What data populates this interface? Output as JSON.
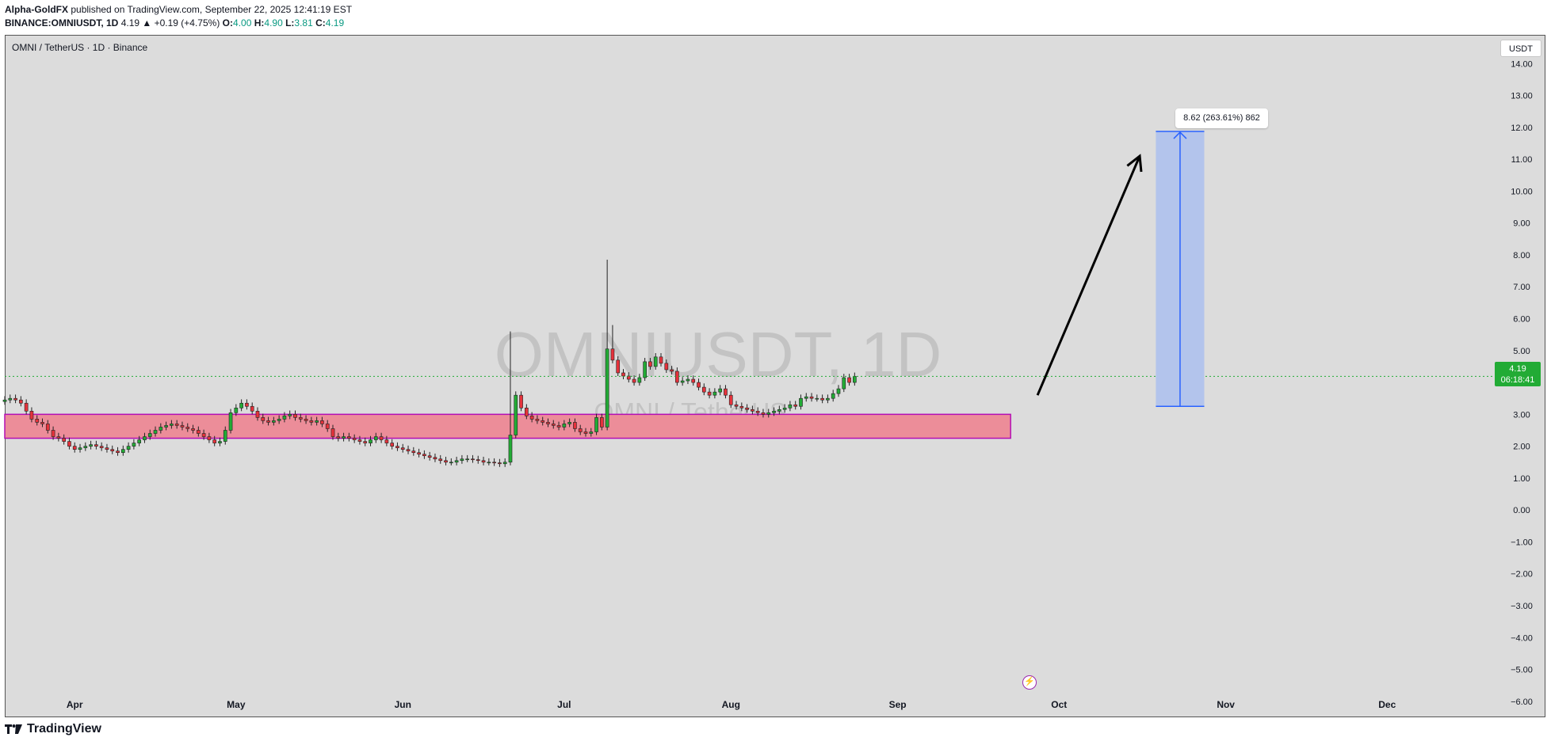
{
  "header": {
    "author": "Alpha-GoldFX",
    "published": "published on TradingView.com, September 22, 2025 12:41:19 EST",
    "symbol": "BINANCE:OMNIUSDT, 1D",
    "last": "4.19",
    "change": "▲ +0.19 (+4.75%)",
    "o_label": "O:",
    "o_val": "4.00",
    "h_label": "H:",
    "h_val": "4.90",
    "l_label": "L:",
    "l_val": "3.81",
    "c_label": "C:",
    "c_val": "4.19"
  },
  "legend": "OMNI / TetherUS · 1D · Binance",
  "currency_button": "USDT",
  "price_tag": {
    "price": "4.19",
    "countdown": "06:18:41"
  },
  "range_label": "8.62 (263.61%) 862",
  "footer": {
    "logo_text": "TradingView"
  },
  "colors": {
    "up": "#22ab35",
    "down": "#e5323b",
    "zone_fill": "#ec8d99",
    "zone_border": "#b40fb4",
    "range_fill": "#b3c4ec",
    "range_line": "#2962ff",
    "background": "#dcdcdc"
  },
  "icons": {
    "flash": "lightning-icon",
    "logo": "tradingview-logo-icon"
  },
  "chart_data": {
    "type": "candlestick",
    "watermark": "OMNIUSDT, 1D",
    "watermark_sub": "OMNI / TetherUS",
    "y_ticks": [
      "14.00",
      "13.00",
      "12.00",
      "11.00",
      "10.00",
      "9.00",
      "8.00",
      "7.00",
      "6.00",
      "5.00",
      "4.00",
      "3.00",
      "2.00",
      "1.00",
      "0.00",
      "−1.00",
      "−2.00",
      "−3.00",
      "−4.00",
      "−5.00",
      "−6.00"
    ],
    "ylim": [
      -6.5,
      14.9
    ],
    "x_ticks": [
      "Apr",
      "May",
      "Jun",
      "Jul",
      "Aug",
      "Sep",
      "Oct",
      "Nov",
      "Dec"
    ],
    "current_price": 4.19,
    "start_date": "2025-03-19",
    "end_date": "2025-12-21",
    "support_zone": {
      "from_date": "2025-03-19",
      "to_date": "2025-09-22",
      "low": 2.25,
      "high": 3.0
    },
    "projection": {
      "from_date": "2025-10-19",
      "to_date": "2025-10-28",
      "low": 3.25,
      "high": 11.87,
      "change": 8.62,
      "percent": 263.61,
      "ticks": 862
    },
    "arrow": {
      "from_date": "2025-09-27",
      "from_price": 3.6,
      "to_date": "2025-10-16",
      "to_price": 11.1
    },
    "closes": [
      3.45,
      3.5,
      3.45,
      3.35,
      3.1,
      2.85,
      2.75,
      2.7,
      2.5,
      2.3,
      2.25,
      2.15,
      2.0,
      1.9,
      1.95,
      2.0,
      2.05,
      2.0,
      1.95,
      1.9,
      1.85,
      1.8,
      1.9,
      2.0,
      2.1,
      2.2,
      2.3,
      2.4,
      2.5,
      2.6,
      2.65,
      2.7,
      2.65,
      2.6,
      2.55,
      2.5,
      2.4,
      2.3,
      2.2,
      2.1,
      2.15,
      2.5,
      3.05,
      3.2,
      3.35,
      3.25,
      3.1,
      2.9,
      2.8,
      2.75,
      2.8,
      2.85,
      2.95,
      3.0,
      2.9,
      2.85,
      2.8,
      2.75,
      2.8,
      2.7,
      2.55,
      2.3,
      2.25,
      2.3,
      2.25,
      2.2,
      2.15,
      2.1,
      2.2,
      2.3,
      2.2,
      2.1,
      2.0,
      1.95,
      1.9,
      1.85,
      1.8,
      1.75,
      1.7,
      1.65,
      1.6,
      1.55,
      1.5,
      1.5,
      1.55,
      1.6,
      1.6,
      1.58,
      1.55,
      1.5,
      1.5,
      1.48,
      1.45,
      1.5,
      2.35,
      3.6,
      3.2,
      2.95,
      2.85,
      2.8,
      2.75,
      2.7,
      2.65,
      2.6,
      2.7,
      2.75,
      2.55,
      2.45,
      2.4,
      2.45,
      2.9,
      2.6,
      5.05,
      4.7,
      4.3,
      4.2,
      4.1,
      4.0,
      4.15,
      4.65,
      4.5,
      4.8,
      4.6,
      4.4,
      4.35,
      4.0,
      4.05,
      4.1,
      4.0,
      3.85,
      3.7,
      3.6,
      3.7,
      3.8,
      3.6,
      3.3,
      3.25,
      3.2,
      3.15,
      3.1,
      3.05,
      3.0,
      3.05,
      3.1,
      3.15,
      3.2,
      3.3,
      3.25,
      3.5,
      3.55,
      3.5,
      3.5,
      3.45,
      3.5,
      3.65,
      3.8,
      4.15,
      4.0,
      4.19
    ]
  }
}
